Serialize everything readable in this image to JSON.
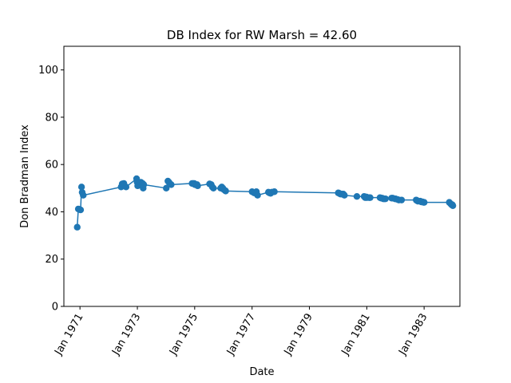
{
  "chart_data": {
    "type": "line",
    "title": "DB Index for RW Marsh = 42.60",
    "xlabel": "Date",
    "ylabel": "Don Bradman Index",
    "ylim": [
      0,
      110
    ],
    "xlim": [
      "1970-06-10",
      "1984-04-01"
    ],
    "grid": false,
    "legend": "none",
    "color": "#1f77b4",
    "x_ticks": [
      "Jan 1971",
      "Jan 1973",
      "Jan 1975",
      "Jan 1977",
      "Jan 1979",
      "Jan 1981",
      "Jan 1983"
    ],
    "x_tick_dates": [
      "1971-01-01",
      "1973-01-01",
      "1975-01-01",
      "1977-01-01",
      "1979-01-01",
      "1981-01-01",
      "1983-01-01"
    ],
    "y_ticks": [
      0,
      20,
      40,
      60,
      80,
      100
    ],
    "series": [
      {
        "points": [
          [
            "1970-11-27",
            33.5
          ],
          [
            "1970-12-11",
            41.2
          ],
          [
            "1970-12-26",
            41.0
          ],
          [
            "1971-01-09",
            40.8
          ],
          [
            "1971-01-21",
            50.5
          ],
          [
            "1971-01-29",
            48.2
          ],
          [
            "1971-02-12",
            47.0
          ],
          [
            "1972-06-08",
            50.5
          ],
          [
            "1972-06-22",
            51.8
          ],
          [
            "1972-07-13",
            52.0
          ],
          [
            "1972-08-10",
            50.5
          ],
          [
            "1972-12-22",
            54.0
          ],
          [
            "1972-12-29",
            52.5
          ],
          [
            "1973-01-05",
            51.0
          ],
          [
            "1973-02-16",
            52.5
          ],
          [
            "1973-03-08",
            52.0
          ],
          [
            "1973-03-16",
            50.0
          ],
          [
            "1973-03-23",
            51.5
          ],
          [
            "1974-01-04",
            50.0
          ],
          [
            "1974-01-25",
            53.0
          ],
          [
            "1974-02-08",
            52.5
          ],
          [
            "1974-03-08",
            51.5
          ],
          [
            "1974-11-29",
            52.0
          ],
          [
            "1974-12-13",
            52.0
          ],
          [
            "1974-12-26",
            52.0
          ],
          [
            "1975-01-04",
            51.5
          ],
          [
            "1975-01-31",
            51.5
          ],
          [
            "1975-02-08",
            51.0
          ],
          [
            "1975-07-10",
            51.8
          ],
          [
            "1975-07-31",
            51.5
          ],
          [
            "1975-08-14",
            50.5
          ],
          [
            "1975-08-28",
            50.0
          ],
          [
            "1975-11-28",
            50.0
          ],
          [
            "1975-12-12",
            50.5
          ],
          [
            "1975-12-26",
            50.0
          ],
          [
            "1976-01-03",
            49.5
          ],
          [
            "1976-01-23",
            49.0
          ],
          [
            "1976-01-31",
            48.8
          ],
          [
            "1977-01-01",
            48.5
          ],
          [
            "1977-01-28",
            48.0
          ],
          [
            "1977-02-25",
            48.5
          ],
          [
            "1977-03-12",
            47.0
          ],
          [
            "1977-07-28",
            48.3
          ],
          [
            "1977-08-11",
            48.0
          ],
          [
            "1977-08-25",
            47.8
          ],
          [
            "1977-09-10",
            48.3
          ],
          [
            "1977-10-12",
            48.5
          ],
          [
            "1980-01-04",
            48.0
          ],
          [
            "1980-01-18",
            47.8
          ],
          [
            "1980-02-01",
            47.5
          ],
          [
            "1980-02-18",
            47.5
          ],
          [
            "1980-03-08",
            47.5
          ],
          [
            "1980-03-22",
            47.0
          ],
          [
            "1980-08-28",
            46.5
          ],
          [
            "1980-11-28",
            46.5
          ],
          [
            "1980-12-12",
            46.0
          ],
          [
            "1980-12-26",
            46.3
          ],
          [
            "1981-01-02",
            46.0
          ],
          [
            "1981-01-30",
            46.0
          ],
          [
            "1981-02-13",
            46.0
          ],
          [
            "1981-06-18",
            46.0
          ],
          [
            "1981-07-02",
            45.8
          ],
          [
            "1981-07-16",
            45.8
          ],
          [
            "1981-07-30",
            45.5
          ],
          [
            "1981-08-13",
            45.5
          ],
          [
            "1981-08-27",
            45.5
          ],
          [
            "1981-11-13",
            45.8
          ],
          [
            "1981-11-27",
            45.8
          ],
          [
            "1981-12-26",
            45.5
          ],
          [
            "1982-01-02",
            45.5
          ],
          [
            "1982-01-30",
            45.2
          ],
          [
            "1982-02-13",
            45.0
          ],
          [
            "1982-03-20",
            45.0
          ],
          [
            "1982-09-22",
            45.0
          ],
          [
            "1982-10-01",
            44.8
          ],
          [
            "1982-10-14",
            44.5
          ],
          [
            "1982-11-12",
            44.5
          ],
          [
            "1982-11-26",
            44.2
          ],
          [
            "1982-12-10",
            44.2
          ],
          [
            "1982-12-26",
            44.0
          ],
          [
            "1983-01-02",
            44.0
          ],
          [
            "1983-11-18",
            44.0
          ],
          [
            "1983-12-02",
            43.5
          ],
          [
            "1983-12-16",
            43.0
          ],
          [
            "1983-12-26",
            43.0
          ],
          [
            "1984-01-02",
            42.6
          ]
        ]
      }
    ]
  }
}
